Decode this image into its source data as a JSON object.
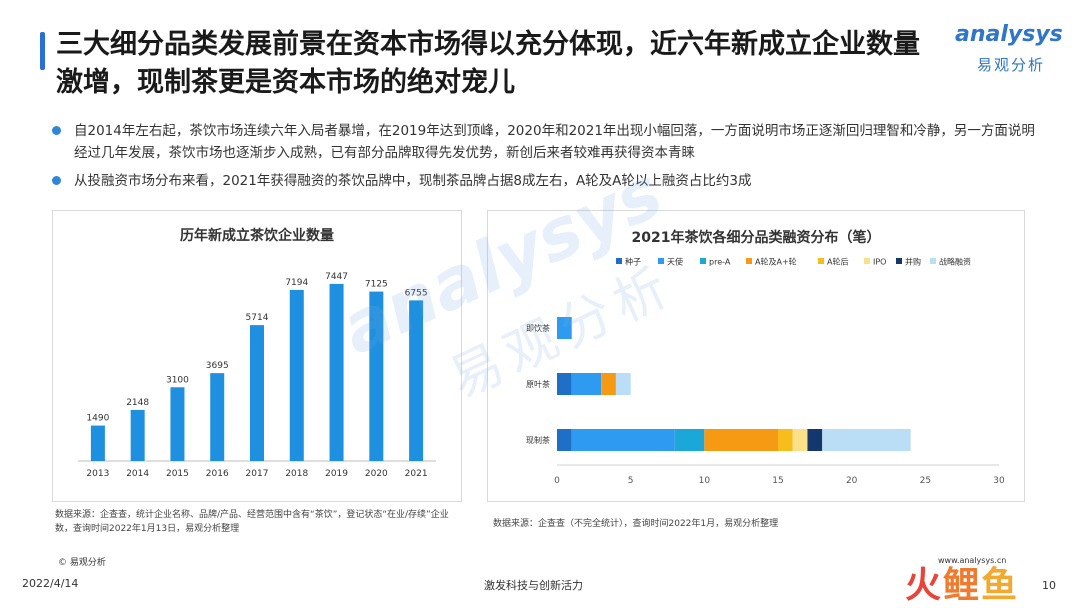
{
  "title": "三大细分品类发展前景在资本市场得以充分体现，近六年新成立企业数量激增，现制茶更是资本市场的绝对宠儿",
  "logo": {
    "en": "analysys",
    "cn": "易观分析"
  },
  "bullets": [
    "自2014年左右起，茶饮市场连续六年入局者暴增，在2019年达到顶峰，2020年和2021年出现小幅回落，一方面说明市场正逐渐回归理智和冷静，另一方面说明经过几年发展，茶饮市场也逐渐步入成熟，已有部分品牌取得先发优势，新创后来者较难再获得资本青睐",
    "从投融资市场分布来看，2021年获得融资的茶饮品牌中，现制茶品牌占据8成左右，A轮及A轮以上融资占比约3成"
  ],
  "watermark": {
    "en": "analysys",
    "cn": "易观分析"
  },
  "chart_data": [
    {
      "type": "bar",
      "title": "历年新成立茶饮企业数量",
      "categories": [
        "2013",
        "2014",
        "2015",
        "2016",
        "2017",
        "2018",
        "2019",
        "2020",
        "2021"
      ],
      "values": [
        1490,
        2148,
        3100,
        3695,
        5714,
        7194,
        7447,
        7125,
        6755
      ],
      "ylim": [
        0,
        8200
      ],
      "color": "#1f8fe0",
      "grid": false,
      "source": "数据来源：企查查，统计企业名称、品牌/产品、经营范围中含有“茶饮”，登记状态“在业/存续”企业数，查询时间2022年1月13日，易观分析整理"
    },
    {
      "type": "bar",
      "orientation": "horizontal",
      "stacked": true,
      "title": "2021年茶饮各细分品类融资分布（笔）",
      "categories": [
        "即饮茶",
        "原叶茶",
        "现制茶"
      ],
      "xlim": [
        0,
        30
      ],
      "xticks": [
        0,
        5,
        10,
        15,
        20,
        25,
        30
      ],
      "legend_position": "top",
      "series": [
        {
          "name": "种子",
          "color": "#1e6fc5",
          "values": [
            0,
            1,
            1
          ]
        },
        {
          "name": "天使",
          "color": "#2f9bf0",
          "values": [
            1,
            2,
            7
          ]
        },
        {
          "name": "pre-A",
          "color": "#1ba8d8",
          "values": [
            0,
            0,
            2
          ]
        },
        {
          "name": "A轮及A+轮",
          "color": "#f59a12",
          "values": [
            0,
            1,
            5
          ]
        },
        {
          "name": "A轮后",
          "color": "#f6bd1d",
          "values": [
            0,
            0,
            1
          ]
        },
        {
          "name": "IPO",
          "color": "#fbe08a",
          "values": [
            0,
            0,
            1
          ]
        },
        {
          "name": "并购",
          "color": "#14386e",
          "values": [
            0,
            0,
            1
          ]
        },
        {
          "name": "战略融资",
          "color": "#b9def6",
          "values": [
            0,
            1,
            6
          ]
        }
      ],
      "source": "数据来源：企查查（不完全统计），查询时间2022年1月，易观分析整理"
    }
  ],
  "footer": {
    "copyright": "© 易观分析",
    "website": "www.analysys.cn",
    "date": "2022/4/14",
    "slogan": "激发科技与创新活力",
    "page": "10",
    "brand": "火鲤鱼"
  }
}
